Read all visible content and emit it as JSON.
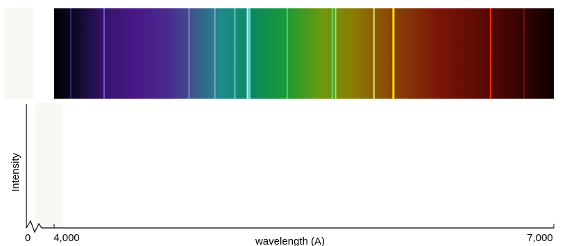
{
  "chart_data": {
    "type": "spectrum",
    "title": "",
    "xlabel": "wavelength (A)",
    "ylabel": "Intensity",
    "xlim": [
      4000,
      7000
    ],
    "x_ticks": [
      {
        "value": 0,
        "label": "0"
      },
      {
        "value": 4000,
        "label": "4,000"
      },
      {
        "value": 7000,
        "label": "7,000"
      }
    ],
    "axis_break_after_zero": true,
    "grid": false,
    "spectrum_colors": [
      {
        "wavelength": 4000,
        "color": "#000000"
      },
      {
        "wavelength": 4150,
        "color": "#120a30"
      },
      {
        "wavelength": 4300,
        "color": "#34146a"
      },
      {
        "wavelength": 4500,
        "color": "#4a1888"
      },
      {
        "wavelength": 4700,
        "color": "#4a2c90"
      },
      {
        "wavelength": 4850,
        "color": "#3c5a8c"
      },
      {
        "wavelength": 5000,
        "color": "#1f8a8c"
      },
      {
        "wavelength": 5200,
        "color": "#0b8a5c"
      },
      {
        "wavelength": 5400,
        "color": "#1b9a34"
      },
      {
        "wavelength": 5600,
        "color": "#6a9a10"
      },
      {
        "wavelength": 5800,
        "color": "#8c7c04"
      },
      {
        "wavelength": 6000,
        "color": "#8a4a06"
      },
      {
        "wavelength": 6300,
        "color": "#7c1606"
      },
      {
        "wavelength": 6700,
        "color": "#4a0404"
      },
      {
        "wavelength": 7000,
        "color": "#0e0000"
      }
    ],
    "emission_lines": [
      {
        "wavelength": 4100,
        "color": "#3a2a6a"
      },
      {
        "wavelength": 4300,
        "color": "#7a52d0"
      },
      {
        "wavelength": 4810,
        "color": "#8a7ad6"
      },
      {
        "wavelength": 4965,
        "color": "#8aa0d6"
      },
      {
        "wavelength": 5085,
        "color": "#6ac0c8"
      },
      {
        "wavelength": 5160,
        "color": "#9af0ff"
      },
      {
        "wavelength": 5175,
        "color": "#5fd0e0"
      },
      {
        "wavelength": 5400,
        "color": "#3ed07a"
      },
      {
        "wavelength": 5670,
        "color": "#58e070"
      },
      {
        "wavelength": 5690,
        "color": "#7af080"
      },
      {
        "wavelength": 5920,
        "color": "#d8e070"
      },
      {
        "wavelength": 6035,
        "color": "#ffe800"
      },
      {
        "wavelength": 6620,
        "color": "#ff3010"
      },
      {
        "wavelength": 6820,
        "color": "#7a1008"
      }
    ]
  }
}
